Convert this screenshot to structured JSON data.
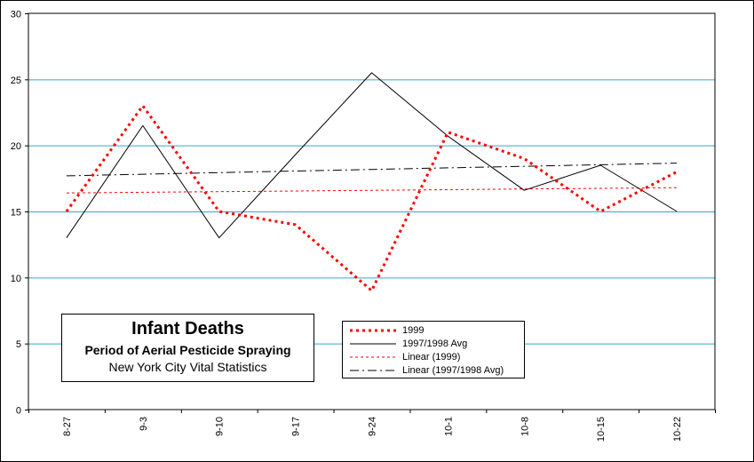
{
  "chart_data": {
    "type": "line",
    "title": "Infant Deaths",
    "subtitle": "Period of Aerial Pesticide Spraying",
    "source": "New York City Vital Statistics",
    "categories": [
      "8-27",
      "9-3",
      "9-10",
      "9-17",
      "9-24",
      "10-1",
      "10-8",
      "10-15",
      "10-22"
    ],
    "ylim": [
      0,
      30
    ],
    "yticks": [
      0,
      5,
      10,
      15,
      20,
      25,
      30
    ],
    "grid": true,
    "legend_position": "bottom-center",
    "series": [
      {
        "name": "1999",
        "values": [
          15,
          23,
          15,
          14,
          9,
          21,
          19,
          15,
          18
        ],
        "color": "#ff0000",
        "style": "dotted-thick"
      },
      {
        "name": "1997/1998 Avg",
        "values": [
          13,
          21.5,
          13,
          19.3,
          25.5,
          20.7,
          16.6,
          18.5,
          15
        ],
        "color": "#000000",
        "style": "solid"
      },
      {
        "name": "Linear (1999)",
        "values": [
          16.4,
          16.45,
          16.5,
          16.55,
          16.6,
          16.65,
          16.7,
          16.75,
          16.8
        ],
        "color": "#ff0000",
        "style": "dotted-thin"
      },
      {
        "name": "Linear (1997/1998 Avg)",
        "values": [
          17.7,
          17.82,
          17.94,
          18.06,
          18.18,
          18.3,
          18.42,
          18.54,
          18.66
        ],
        "color": "#000000",
        "style": "dash-dot"
      }
    ],
    "gridline_color": "#33aacc"
  }
}
